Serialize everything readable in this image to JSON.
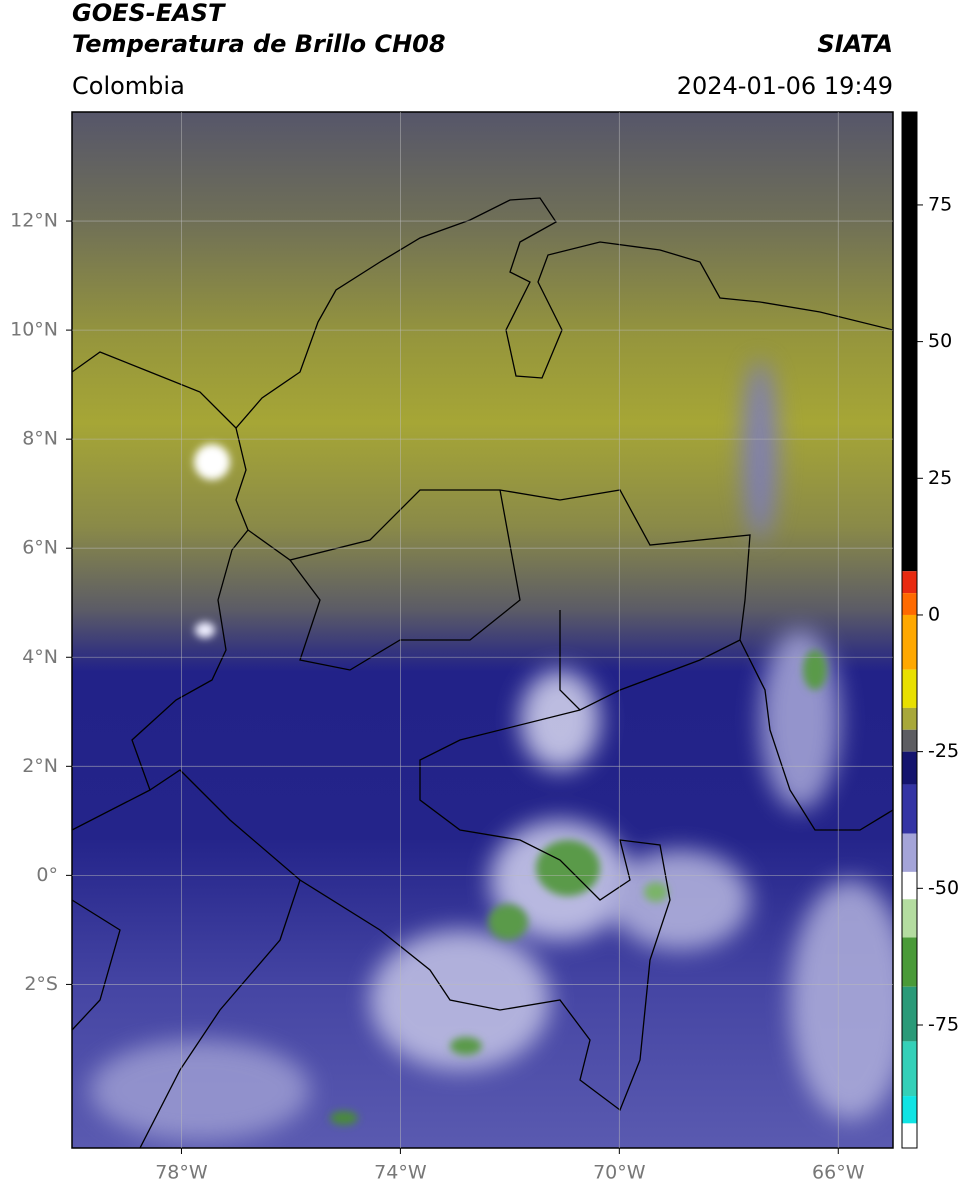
{
  "chart_data": {
    "type": "map",
    "title": "GOES-EAST",
    "subtitle": "Temperatura de Brillo CH08",
    "annotations": {
      "source": "SIATA",
      "region": "Colombia",
      "timestamp": "2024-01-06 19:49"
    },
    "xlim": [
      -80,
      -65
    ],
    "ylim": [
      -5,
      14
    ],
    "xticks": [
      {
        "value": -78,
        "label": "78°W"
      },
      {
        "value": -74,
        "label": "74°W"
      },
      {
        "value": -70,
        "label": "70°W"
      },
      {
        "value": -66,
        "label": "66°W"
      }
    ],
    "yticks": [
      {
        "value": 12,
        "label": "12°N"
      },
      {
        "value": 10,
        "label": "10°N"
      },
      {
        "value": 8,
        "label": "8°N"
      },
      {
        "value": 6,
        "label": "6°N"
      },
      {
        "value": 4,
        "label": "4°N"
      },
      {
        "value": 2,
        "label": "2°N"
      },
      {
        "value": 0,
        "label": "0°"
      },
      {
        "value": -2,
        "label": "2°S"
      }
    ],
    "grid": true,
    "colorbar": {
      "lim": [
        -97.5,
        92
      ],
      "ticks": [
        75,
        50,
        25,
        0,
        -25,
        -50,
        -75
      ],
      "segments": [
        {
          "from": 8,
          "to": 92,
          "color": "#000000"
        },
        {
          "from": 4,
          "to": 8,
          "color": "#e82a10"
        },
        {
          "from": 0,
          "to": 4,
          "color": "#ff6a00"
        },
        {
          "from": -10,
          "to": 0,
          "color": "#ffa800"
        },
        {
          "from": -17,
          "to": -10,
          "color": "#e8e000"
        },
        {
          "from": -21,
          "to": -17,
          "color": "#a8a83a"
        },
        {
          "from": -25,
          "to": -21,
          "color": "#5e5e62"
        },
        {
          "from": -31,
          "to": -25,
          "color": "#14146e"
        },
        {
          "from": -40,
          "to": -31,
          "color": "#3434a4"
        },
        {
          "from": -47,
          "to": -40,
          "color": "#a4a4d8"
        },
        {
          "from": -52,
          "to": -47,
          "color": "#ffffff"
        },
        {
          "from": -59,
          "to": -52,
          "color": "#b4dca0"
        },
        {
          "from": -68,
          "to": -59,
          "color": "#4a9a38"
        },
        {
          "from": -78,
          "to": -68,
          "color": "#2a9a78"
        },
        {
          "from": -88,
          "to": -78,
          "color": "#34d0b8"
        },
        {
          "from": -93,
          "to": -88,
          "color": "#10e4e4"
        },
        {
          "from": -97.5,
          "to": -93,
          "color": "#ffffff"
        }
      ]
    }
  }
}
